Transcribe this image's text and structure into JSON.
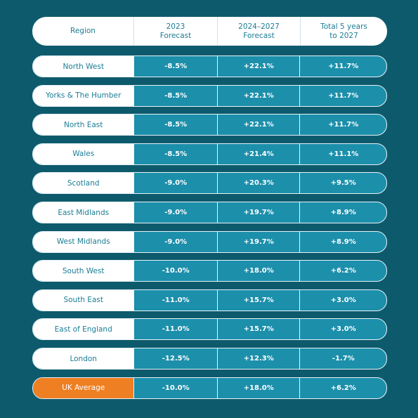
{
  "table": {
    "header": [
      [
        "Region"
      ],
      [
        "2023",
        "Forecast"
      ],
      [
        "2024–2027",
        "Forecast"
      ],
      [
        "Total 5 years",
        "to 2027"
      ]
    ],
    "rows": [
      [
        "North West",
        "-8.5%",
        "+22.1%",
        "+11.7%"
      ],
      [
        "Yorks & The Humber",
        "-8.5%",
        "+22.1%",
        "+11.7%"
      ],
      [
        "North East",
        "-8.5%",
        "+22.1%",
        "+11.7%"
      ],
      [
        "Wales",
        "-8.5%",
        "+21.4%",
        "+11.1%"
      ],
      [
        "Scotland",
        "-9.0%",
        "+20.3%",
        "+9.5%"
      ],
      [
        "East Midlands",
        "-9.0%",
        "+19.7%",
        "+8.9%"
      ],
      [
        "West Midlands",
        "-9.0%",
        "+19.7%",
        "+8.9%"
      ],
      [
        "South West",
        "-10.0%",
        "+18.0%",
        "+6.2%"
      ],
      [
        "South East",
        "-11.0%",
        "+15.7%",
        "+3.0%"
      ],
      [
        "East of England",
        "-11.0%",
        "+15.7%",
        "+3.0%"
      ],
      [
        "London",
        "-12.5%",
        "+12.3%",
        "-1.7%"
      ],
      [
        "UK Average",
        "-10.0%",
        "+18.0%",
        "+6.2%"
      ]
    ]
  }
}
